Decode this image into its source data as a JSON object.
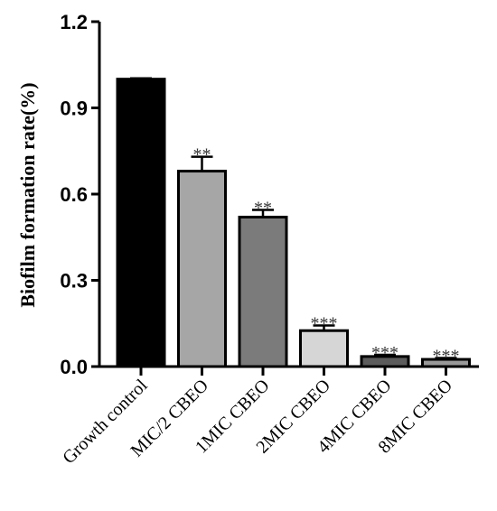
{
  "chart_data": {
    "type": "bar",
    "ylabel": "Biofilm formation rate(%)",
    "xlabel": "",
    "ylim": [
      0,
      1.2
    ],
    "yticks": [
      "0.0",
      "0.3",
      "0.6",
      "0.9",
      "1.2"
    ],
    "categories": [
      "Growth control",
      "MIC/2 CBEO",
      "1MIC CBEO",
      "2MIC CBEO",
      "4MIC CBEO",
      "8MIC CBEO"
    ],
    "values": [
      1.0,
      0.68,
      0.52,
      0.125,
      0.035,
      0.025
    ],
    "errors": [
      0.003,
      0.05,
      0.025,
      0.018,
      0.006,
      0.005
    ],
    "significance": [
      "",
      "**",
      "**",
      "***",
      "***",
      "***"
    ],
    "bar_colors": [
      "#000000",
      "#a6a6a6",
      "#7b7b7b",
      "#d6d6d6",
      "#5c5c5c",
      "#999999"
    ],
    "grid": false,
    "legend": "none"
  }
}
